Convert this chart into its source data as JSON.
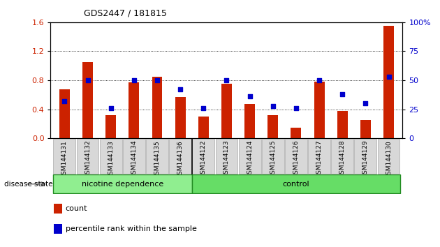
{
  "title": "GDS2447 / 181815",
  "samples": [
    "GSM144131",
    "GSM144132",
    "GSM144133",
    "GSM144134",
    "GSM144135",
    "GSM144136",
    "GSM144122",
    "GSM144123",
    "GSM144124",
    "GSM144125",
    "GSM144126",
    "GSM144127",
    "GSM144128",
    "GSM144129",
    "GSM144130"
  ],
  "bar_values": [
    0.68,
    1.05,
    0.32,
    0.77,
    0.85,
    0.57,
    0.3,
    0.75,
    0.47,
    0.32,
    0.15,
    0.78,
    0.38,
    0.25,
    1.55
  ],
  "dot_values": [
    32,
    50,
    26,
    50,
    50,
    42,
    26,
    50,
    36,
    28,
    26,
    50,
    38,
    30,
    53
  ],
  "bar_color": "#cc2200",
  "dot_color": "#0000cc",
  "ylim_left": [
    0,
    1.6
  ],
  "ylim_right": [
    0,
    100
  ],
  "yticks_left": [
    0,
    0.4,
    0.8,
    1.2,
    1.6
  ],
  "yticks_right": [
    0,
    25,
    50,
    75,
    100
  ],
  "ytick_labels_right": [
    "0",
    "25",
    "50",
    "75",
    "100%"
  ],
  "grid_values": [
    0.4,
    0.8,
    1.2
  ],
  "n_nicotine": 6,
  "nicotine_label": "nicotine dependence",
  "control_label": "control",
  "disease_state_label": "disease state",
  "legend_bar_label": "count",
  "legend_dot_label": "percentile rank within the sample",
  "nicotine_color": "#90EE90",
  "control_color": "#66DD66",
  "tick_bg_color": "#D8D8D8",
  "tick_edge_color": "#AAAAAA",
  "plot_bg_color": "#ffffff"
}
